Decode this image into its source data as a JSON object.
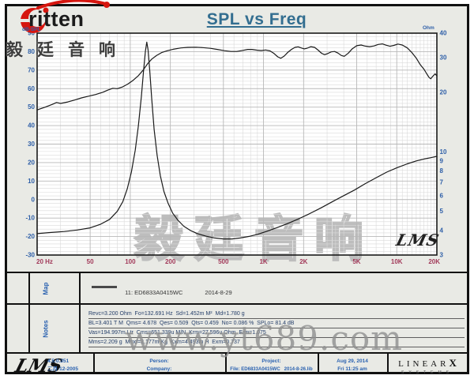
{
  "header": {
    "title": "SPL vs Freq",
    "logo_word": "ritten",
    "logo_cjk": "毅廷音响"
  },
  "axes_units": {
    "left": "dB-SPL",
    "right": "Ohm"
  },
  "map": {
    "label": "Map",
    "legend": {
      "name": "11: ED6833A0415WC",
      "date": "2014-8-29"
    }
  },
  "notes": {
    "label": "Notes",
    "lines": [
      "Revc=3.200 Ohm  Fo=132.691 Hz  Sd=1.452m M²  Md=1.780 g",
      "BL=3.401 T M  Qms= 4.678  Qes= 0.509  Qts= 0.459  No= 0.086 %  SPLo= 81.4 dB",
      "Vas=194.997m Ltr  Cms=651.339u M/N  Krm=27.596u Ohm  Erm=1.075",
      "Mms=2.209 g  Mmd=2.177m Kg  Kxm=4.493m H  Exm=0.737"
    ]
  },
  "footer": {
    "lms_logo": "LMS",
    "version": "4.5.0.351",
    "version_date": "二月-12-2005",
    "person_label": "Person:",
    "company_label": "Company:",
    "project_label": "Project:",
    "file_line": "File: ED6833A0415WC   2014-8-26.lib",
    "date_line1": "Aug 29, 2014",
    "date_line2": "Fri 11:25 am",
    "brand_line1": "LINEAR",
    "brand_x": "X",
    "brand_line2": "SYSTEMS"
  },
  "watermarks": {
    "center_cjk": "毅廷音响",
    "site": "www.yt689.com",
    "lms": "LMS"
  },
  "colors": {
    "title_blue": "#336e90",
    "axis_blue": "#2e5fa8",
    "x_tick_red": "#a23a5a",
    "logo_red": "#d6160f",
    "curve_black": "#1a1a1a",
    "watermark_gray": "#8f8f8f"
  },
  "chart_data": {
    "type": "line",
    "title": "SPL vs Freq",
    "x_axis": {
      "scale": "log",
      "min": 20,
      "max": 20000,
      "tick_values": [
        20,
        50,
        100,
        200,
        500,
        1000,
        2000,
        5000,
        10000,
        20000
      ],
      "tick_labels": [
        "20 Hz",
        "50",
        "100",
        "200",
        "500",
        "1K",
        "2K",
        "5K",
        "10K",
        "20K"
      ]
    },
    "y_left": {
      "label": "dB-SPL",
      "scale": "linear",
      "min": -30,
      "max": 90,
      "ticks": [
        90,
        80,
        70,
        60,
        50,
        40,
        30,
        20,
        10,
        0,
        -10,
        -20,
        -30
      ]
    },
    "y_right": {
      "label": "Ohm",
      "scale": "log",
      "min": 3,
      "max": 40,
      "ticks": [
        40,
        30,
        20,
        10,
        9,
        8,
        7,
        6,
        5,
        4,
        3
      ]
    },
    "grid": {
      "minor_db_step": 2,
      "major_db_step": 10,
      "log_minors": true
    },
    "series": [
      {
        "name": "SPL  11: ED6833A0415WC  2014-8-29",
        "axis": "left",
        "unit": "dB",
        "points": [
          [
            20,
            48.5
          ],
          [
            23,
            50
          ],
          [
            26,
            51.5
          ],
          [
            28,
            52.5
          ],
          [
            30,
            52
          ],
          [
            34,
            52.8
          ],
          [
            38,
            53.8
          ],
          [
            43,
            55
          ],
          [
            48,
            55.8
          ],
          [
            55,
            56.8
          ],
          [
            62,
            58
          ],
          [
            68,
            59.2
          ],
          [
            74,
            60.2
          ],
          [
            80,
            60
          ],
          [
            88,
            61
          ],
          [
            96,
            62.5
          ],
          [
            105,
            64.5
          ],
          [
            115,
            67
          ],
          [
            125,
            70
          ],
          [
            135,
            73.5
          ],
          [
            145,
            76
          ],
          [
            158,
            78
          ],
          [
            172,
            79.5
          ],
          [
            190,
            80.5
          ],
          [
            210,
            81.3
          ],
          [
            240,
            82
          ],
          [
            270,
            82.3
          ],
          [
            310,
            82.4
          ],
          [
            350,
            82.2
          ],
          [
            400,
            81.8
          ],
          [
            450,
            81.2
          ],
          [
            510,
            80.5
          ],
          [
            570,
            80.1
          ],
          [
            630,
            80.1
          ],
          [
            700,
            80.7
          ],
          [
            760,
            81.2
          ],
          [
            820,
            81.2
          ],
          [
            890,
            80.8
          ],
          [
            960,
            80.6
          ],
          [
            1040,
            80.9
          ],
          [
            1120,
            80.4
          ],
          [
            1200,
            79
          ],
          [
            1280,
            77.2
          ],
          [
            1350,
            76.4
          ],
          [
            1430,
            77.6
          ],
          [
            1520,
            79.6
          ],
          [
            1620,
            81.2
          ],
          [
            1720,
            82.3
          ],
          [
            1820,
            82.6
          ],
          [
            1920,
            82
          ],
          [
            2020,
            81.5
          ],
          [
            2130,
            81.9
          ],
          [
            2270,
            82.7
          ],
          [
            2420,
            82.3
          ],
          [
            2570,
            80.8
          ],
          [
            2730,
            79.1
          ],
          [
            2870,
            78.4
          ],
          [
            3020,
            78.9
          ],
          [
            3220,
            79.9
          ],
          [
            3420,
            80.1
          ],
          [
            3630,
            79.2
          ],
          [
            3840,
            77.9
          ],
          [
            4040,
            77.5
          ],
          [
            4330,
            79.2
          ],
          [
            4640,
            81.6
          ],
          [
            5000,
            83.2
          ],
          [
            5400,
            83.6
          ],
          [
            5800,
            83
          ],
          [
            6250,
            82.7
          ],
          [
            6750,
            83.1
          ],
          [
            7250,
            83.9
          ],
          [
            7800,
            84.2
          ],
          [
            8300,
            83.5
          ],
          [
            8900,
            82.9
          ],
          [
            9500,
            83.4
          ],
          [
            10200,
            84.1
          ],
          [
            11000,
            83.6
          ],
          [
            12000,
            82
          ],
          [
            13000,
            79.5
          ],
          [
            14000,
            76.5
          ],
          [
            15000,
            73
          ],
          [
            16000,
            70.5
          ],
          [
            16800,
            68
          ],
          [
            17500,
            66
          ],
          [
            18000,
            65.3
          ],
          [
            18700,
            66.8
          ],
          [
            19400,
            68
          ],
          [
            20000,
            66.8
          ]
        ]
      },
      {
        "name": "Impedance",
        "axis": "right",
        "unit": "Ohm",
        "points": [
          [
            20,
            3.85
          ],
          [
            25,
            3.9
          ],
          [
            32,
            3.95
          ],
          [
            40,
            4.02
          ],
          [
            50,
            4.12
          ],
          [
            60,
            4.3
          ],
          [
            70,
            4.55
          ],
          [
            80,
            5.0
          ],
          [
            88,
            5.6
          ],
          [
            95,
            6.5
          ],
          [
            102,
            7.9
          ],
          [
            109,
            10.2
          ],
          [
            115,
            13.5
          ],
          [
            121,
            19
          ],
          [
            126,
            26
          ],
          [
            130,
            32.5
          ],
          [
            133,
            36
          ],
          [
            136,
            33
          ],
          [
            140,
            26
          ],
          [
            145,
            18.5
          ],
          [
            151,
            13
          ],
          [
            159,
            9.6
          ],
          [
            168,
            7.6
          ],
          [
            179,
            6.3
          ],
          [
            192,
            5.5
          ],
          [
            208,
            4.9
          ],
          [
            228,
            4.5
          ],
          [
            252,
            4.2
          ],
          [
            282,
            4.0
          ],
          [
            320,
            3.85
          ],
          [
            370,
            3.74
          ],
          [
            430,
            3.66
          ],
          [
            500,
            3.62
          ],
          [
            580,
            3.62
          ],
          [
            670,
            3.66
          ],
          [
            780,
            3.73
          ],
          [
            900,
            3.82
          ],
          [
            1050,
            3.95
          ],
          [
            1250,
            4.12
          ],
          [
            1500,
            4.32
          ],
          [
            1800,
            4.55
          ],
          [
            2200,
            4.85
          ],
          [
            2700,
            5.2
          ],
          [
            3300,
            5.6
          ],
          [
            4000,
            6.0
          ],
          [
            4800,
            6.4
          ],
          [
            5800,
            6.9
          ],
          [
            7000,
            7.4
          ],
          [
            8400,
            7.9
          ],
          [
            10000,
            8.3
          ],
          [
            12000,
            8.7
          ],
          [
            14000,
            9.0
          ],
          [
            16000,
            9.2
          ],
          [
            18000,
            9.35
          ],
          [
            20000,
            9.5
          ]
        ]
      }
    ],
    "annotations": {
      "resonance_peak_hz": 132.691,
      "impedance_min_ohm": 3.6,
      "spl_plateau_db": 81.4
    }
  }
}
